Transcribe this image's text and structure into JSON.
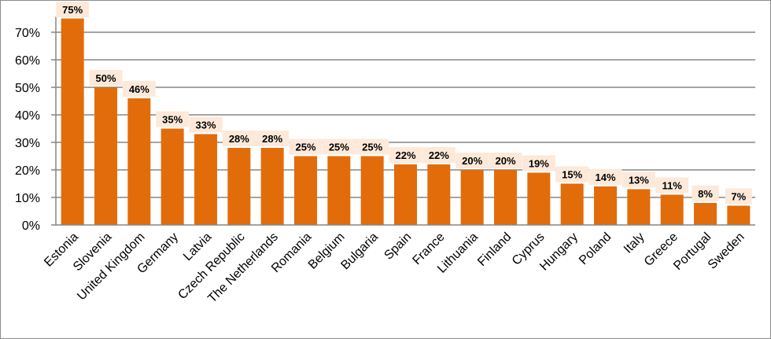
{
  "chart_data": {
    "type": "bar",
    "categories": [
      "Estonia",
      "Slovenia",
      "United Kingdom",
      "Germany",
      "Latvia",
      "Czech Republic",
      "The Netherlands",
      "Romania",
      "Belgium",
      "Bulgaria",
      "Spain",
      "France",
      "Lithuania",
      "Finland",
      "Cyprus",
      "Hungary",
      "Poland",
      "Italy",
      "Greece",
      "Portugal",
      "Sweden"
    ],
    "values": [
      75,
      50,
      46,
      35,
      33,
      28,
      28,
      25,
      25,
      25,
      22,
      22,
      20,
      20,
      19,
      15,
      14,
      13,
      11,
      8,
      7
    ],
    "data_labels": [
      "75%",
      "50%",
      "46%",
      "35%",
      "33%",
      "28%",
      "28%",
      "25%",
      "25%",
      "25%",
      "22%",
      "22%",
      "20%",
      "20%",
      "19%",
      "15%",
      "14%",
      "13%",
      "11%",
      "8%",
      "7%"
    ],
    "yticks": [
      0,
      10,
      20,
      30,
      40,
      50,
      60,
      70
    ],
    "ytick_labels": [
      "0%",
      "10%",
      "20%",
      "30%",
      "40%",
      "50%",
      "60%",
      "70%"
    ],
    "ylim": [
      0,
      75
    ],
    "grid": true,
    "legend": "none",
    "bar_color": "#e36c0a",
    "label_bg_color": "#fde9d9",
    "grid_color": "#868686"
  }
}
